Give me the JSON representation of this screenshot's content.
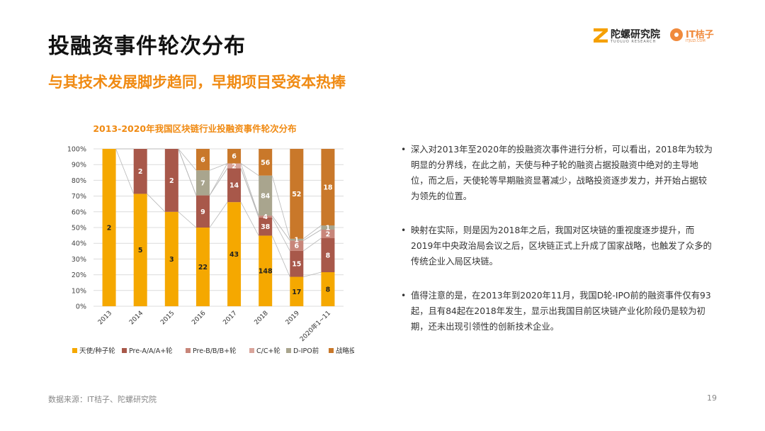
{
  "header": {
    "title": "投融资事件轮次分布",
    "subtitle": "与其技术发展脚步趋同，早期项目受资本热捧"
  },
  "logos": {
    "brand1": "陀螺研究院",
    "brand1_sub": "TUOLUO RESEARCH",
    "brand2": "IT桔子",
    "brand2_sub": "ITJUZI.COM"
  },
  "chart_data": {
    "type": "bar",
    "stacked": true,
    "normalized": true,
    "title": "2013-2020年我国区块链行业投融资事件轮次分布",
    "categories": [
      "2013",
      "2014",
      "2015",
      "2016",
      "2017",
      "2018",
      "2019",
      "2020年1~11"
    ],
    "ylim": [
      0,
      100
    ],
    "yticks": [
      "0%",
      "10%",
      "20%",
      "30%",
      "40%",
      "50%",
      "60%",
      "70%",
      "80%",
      "90%",
      "100%"
    ],
    "grid": true,
    "legend_position": "bottom",
    "series": [
      {
        "name": "天使/种子轮",
        "color": "#f5a800",
        "values": [
          2,
          5,
          3,
          22,
          43,
          148,
          17,
          8
        ]
      },
      {
        "name": "Pre-A/A/A+轮",
        "color": "#a8584a",
        "values": [
          0,
          2,
          2,
          9,
          14,
          38,
          15,
          8
        ]
      },
      {
        "name": "Pre-B/B/B+轮",
        "color": "#c8867a",
        "values": [
          0,
          0,
          0,
          0,
          0,
          4,
          6,
          2
        ]
      },
      {
        "name": "C/C+轮",
        "color": "#d9a59b",
        "values": [
          0,
          0,
          0,
          0,
          2,
          0,
          0,
          0
        ]
      },
      {
        "name": "D-IPO前",
        "color": "#a9a58e",
        "values": [
          0,
          0,
          0,
          7,
          0,
          84,
          1,
          1
        ]
      },
      {
        "name": "战略投资",
        "color": "#c9782a",
        "values": [
          0,
          0,
          0,
          6,
          6,
          56,
          52,
          18
        ]
      }
    ]
  },
  "bullets": [
    "深入对2013年至2020年的投融资次事件进行分析，可以看出，2018年为较为明显的分界线，在此之前，天使与种子轮的融资占据投融资中绝对的主导地位，而之后，天使轮等早期融资显著减少，战略投资逐步发力，并开始占据较为领先的位置。",
    "映射在实际，则是因为2018年之后，我国对区块链的重视度逐步提升，而2019年中央政治局会议之后，区块链正式上升成了国家战略，也触发了众多的传统企业入局区块链。",
    "值得注意的是，在2013年到2020年11月，我国D轮-IPO前的融资事件仅有93起，且有84起在2018年发生，显示出我国目前区块链产业化阶段仍是较为初期，还未出现引领性的创新技术企业。"
  ],
  "footer": {
    "source": "数据来源：IT桔子、陀螺研究院",
    "page": "19"
  }
}
